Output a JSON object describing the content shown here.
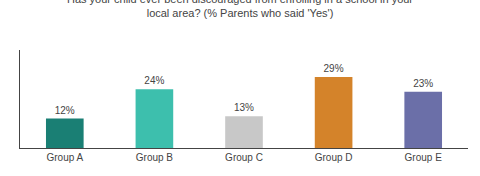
{
  "chart_data": {
    "type": "bar",
    "title": "Has your child ever been discouraged from enrolling in a school in your\nlocal area? (% Parents who said 'Yes')",
    "categories": [
      "Group A",
      "Group B",
      "Group C",
      "Group D",
      "Group E"
    ],
    "values": [
      12,
      24,
      13,
      29,
      23
    ],
    "value_labels": [
      "12%",
      "24%",
      "13%",
      "29%",
      "23%"
    ],
    "colors": [
      "#1a7f74",
      "#3dbfad",
      "#c8c8c8",
      "#d4832a",
      "#6b6fa8"
    ],
    "ylim": [
      0,
      40
    ],
    "data_labels": true,
    "tick_labels": "x",
    "grid": false
  }
}
